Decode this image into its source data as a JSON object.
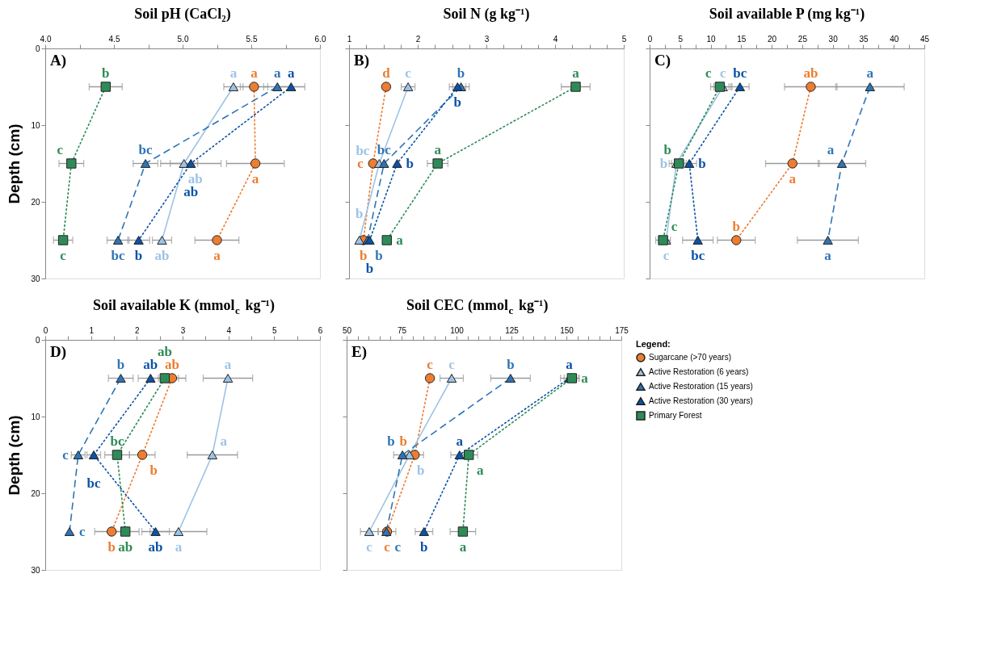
{
  "chart_data": [
    {
      "type": "line",
      "title": "Soil pH (CaCl₂)",
      "ylabel": "Depth (cm)",
      "annotations": [
        "A)"
      ],
      "grid": false,
      "legend": false,
      "xlim": [
        4,
        6
      ],
      "xticks": [
        {
          "value": 4,
          "label": "4.0"
        },
        {
          "value": 4.25,
          "label": null
        },
        {
          "value": 4.5,
          "label": "4.5"
        },
        {
          "value": 4.75,
          "label": null
        },
        {
          "value": 5,
          "label": "5.0"
        },
        {
          "value": 5.25,
          "label": null
        },
        {
          "value": 5.5,
          "label": "5.5"
        },
        {
          "value": 5.75,
          "label": null
        },
        {
          "value": 6,
          "label": "6.0"
        }
      ],
      "ylim": [
        30,
        0
      ],
      "yticks": [
        0,
        10,
        20,
        30
      ],
      "series": [
        {
          "color": "#ed7d31",
          "marker": "circle",
          "line_style": "dotted",
          "x": [
            5.52,
            5.53,
            5.25
          ],
          "values": [
            5,
            15,
            25
          ],
          "xerrors": [
            0.1,
            0.21,
            0.16
          ],
          "value_labels": [
            "a",
            "a",
            "a"
          ]
        },
        {
          "color": "#9dc3e6",
          "marker": "triangle",
          "line_style": "solid",
          "x": [
            5.37,
            5.01,
            4.85
          ],
          "values": [
            5,
            15,
            25
          ],
          "xerrors": [
            0.07,
            0.1,
            0.07
          ],
          "value_labels": [
            "a",
            "ab",
            "ab"
          ]
        },
        {
          "color": "#2e75b6",
          "marker": "triangle",
          "line_style": "dashed",
          "x": [
            5.69,
            4.73,
            4.53
          ],
          "values": [
            5,
            15,
            25
          ],
          "xerrors": [
            0.1,
            0.09,
            0.08
          ],
          "value_labels": [
            "a",
            "bc",
            "bc"
          ]
        },
        {
          "color": "#0b52a8",
          "marker": "triangle",
          "line_style": "dotted",
          "x": [
            5.79,
            5.06,
            4.68
          ],
          "values": [
            5,
            15,
            25
          ],
          "xerrors": [
            0.1,
            0.22,
            0.08
          ],
          "value_labels": [
            "a",
            "ab",
            "b"
          ]
        },
        {
          "color": "#2e8b57",
          "marker": "square",
          "line_style": "dotted",
          "x": [
            4.44,
            4.19,
            4.13
          ],
          "values": [
            5,
            15,
            25
          ],
          "xerrors": [
            0.12,
            0.09,
            0.07
          ],
          "value_labels": [
            "b",
            "c",
            "c"
          ]
        }
      ]
    },
    {
      "type": "line",
      "title": "Soil N (g kg⁻¹)",
      "annotations": [
        "B)"
      ],
      "grid": false,
      "legend": false,
      "tick_labels": "x",
      "xlim": [
        1,
        5
      ],
      "xticks": [
        1,
        {
          "value": 1.25,
          "label": null
        },
        {
          "value": 1.5,
          "label": null
        },
        {
          "value": 1.75,
          "label": null
        },
        2,
        {
          "value": 2.25,
          "label": null
        },
        {
          "value": 2.5,
          "label": null
        },
        {
          "value": 2.75,
          "label": null
        },
        3,
        {
          "value": 3.25,
          "label": null
        },
        {
          "value": 3.5,
          "label": null
        },
        {
          "value": 3.75,
          "label": null
        },
        4,
        {
          "value": 4.25,
          "label": null
        },
        {
          "value": 4.5,
          "label": null
        },
        {
          "value": 4.75,
          "label": null
        },
        5
      ],
      "ylim": [
        30,
        0
      ],
      "yticks": [
        0,
        10,
        20,
        30
      ],
      "series": [
        {
          "color": "#ed7d31",
          "marker": "circle",
          "line_style": "dotted",
          "x": [
            1.54,
            1.35,
            1.21
          ],
          "values": [
            5,
            15,
            25
          ],
          "xerrors": [
            null,
            null,
            null
          ],
          "value_labels": [
            "d",
            "c",
            "b"
          ]
        },
        {
          "color": "#9dc3e6",
          "marker": "triangle",
          "line_style": "solid",
          "x": [
            1.86,
            1.44,
            1.15
          ],
          "values": [
            5,
            15,
            25
          ],
          "xerrors": [
            0.1,
            null,
            null
          ],
          "value_labels": [
            "c",
            "bc",
            "b"
          ]
        },
        {
          "color": "#2e75b6",
          "marker": "triangle",
          "line_style": "dashed",
          "x": [
            2.63,
            1.51,
            1.27
          ],
          "values": [
            5,
            15,
            25
          ],
          "xerrors": [
            0.12,
            null,
            null
          ],
          "value_labels": [
            "b",
            "bc",
            "b"
          ]
        },
        {
          "color": "#0b52a8",
          "marker": "triangle",
          "line_style": "dotted",
          "x": [
            2.58,
            1.7,
            1.3
          ],
          "values": [
            5,
            15,
            25
          ],
          "xerrors": [
            0.12,
            null,
            null
          ],
          "value_labels": [
            "b",
            "b",
            "b"
          ]
        },
        {
          "color": "#2e8b57",
          "marker": "square",
          "line_style": "dotted",
          "x": [
            4.3,
            2.29,
            1.55
          ],
          "values": [
            5,
            15,
            25
          ],
          "xerrors": [
            0.21,
            0.15,
            null
          ],
          "value_labels": [
            "a",
            "a",
            "a"
          ]
        }
      ]
    },
    {
      "type": "line",
      "title": "Soil available P (mg kg⁻¹)",
      "annotations": [
        "C)"
      ],
      "grid": false,
      "legend": false,
      "tick_labels": "x",
      "xlim": [
        0,
        45
      ],
      "xticks": [
        0,
        {
          "value": 2.5,
          "label": null
        },
        5,
        {
          "value": 7.5,
          "label": null
        },
        10,
        {
          "value": 12.5,
          "label": null
        },
        15,
        {
          "value": 17.5,
          "label": null
        },
        20,
        {
          "value": 22.5,
          "label": null
        },
        25,
        {
          "value": 27.5,
          "label": null
        },
        30,
        {
          "value": 32.5,
          "label": null
        },
        35,
        {
          "value": 37.5,
          "label": null
        },
        40,
        {
          "value": 42.5,
          "label": null
        },
        45
      ],
      "ylim": [
        30,
        0
      ],
      "yticks": [
        0,
        10,
        20,
        30
      ],
      "series": [
        {
          "color": "#ed7d31",
          "marker": "circle",
          "line_style": "dotted",
          "x": [
            26.4,
            23.4,
            14.2
          ],
          "values": [
            5,
            15,
            25
          ],
          "xerrors": [
            4.3,
            4.4,
            3.1
          ],
          "value_labels": [
            "ab",
            "a",
            "b"
          ]
        },
        {
          "color": "#9dc3e6",
          "marker": "triangle",
          "line_style": "solid",
          "x": [
            12.0,
            4.4,
            2.7
          ],
          "values": [
            5,
            15,
            25
          ],
          "xerrors": [
            1.5,
            1.2,
            null
          ],
          "value_labels": [
            "c",
            "b",
            "c"
          ]
        },
        {
          "color": "#2e75b6",
          "marker": "triangle",
          "line_style": "dashed",
          "x": [
            36.1,
            31.5,
            29.2
          ],
          "values": [
            5,
            15,
            25
          ],
          "xerrors": [
            5.6,
            3.9,
            5.0
          ],
          "value_labels": [
            "a",
            "a",
            "a"
          ]
        },
        {
          "color": "#0b52a8",
          "marker": "triangle",
          "line_style": "dotted",
          "x": [
            14.8,
            6.5,
            7.9
          ],
          "values": [
            5,
            15,
            25
          ],
          "xerrors": [
            1.5,
            1.2,
            2.5
          ],
          "value_labels": [
            "bc",
            "b",
            "bc"
          ]
        },
        {
          "color": "#2e8b57",
          "marker": "square",
          "line_style": "dotted",
          "x": [
            11.5,
            4.8,
            2.2
          ],
          "values": [
            5,
            15,
            25
          ],
          "xerrors": [
            1.5,
            1.2,
            1.2
          ],
          "value_labels": [
            "c",
            "b",
            "c"
          ]
        }
      ]
    },
    {
      "type": "line",
      "title": "Soil available K (mmol$_{c}$ kg⁻¹)",
      "ylabel": "Depth (cm)",
      "annotations": [
        "D)"
      ],
      "grid": false,
      "legend": false,
      "xlim": [
        0,
        6
      ],
      "xticks": [
        0,
        {
          "value": 0.5,
          "label": null
        },
        1,
        {
          "value": 1.5,
          "label": null
        },
        2,
        {
          "value": 2.5,
          "label": null
        },
        3,
        {
          "value": 3.5,
          "label": null
        },
        4,
        {
          "value": 4.5,
          "label": null
        },
        5,
        {
          "value": 5.5,
          "label": null
        },
        6
      ],
      "ylim": [
        30,
        0
      ],
      "yticks": [
        0,
        10,
        20,
        30
      ],
      "series": [
        {
          "color": "#ed7d31",
          "marker": "circle",
          "line_style": "dotted",
          "x": [
            2.77,
            2.12,
            1.45
          ],
          "values": [
            5,
            15,
            25
          ],
          "xerrors": [
            0.3,
            0.28,
            0.37
          ],
          "value_labels": [
            "ab",
            "b",
            "b"
          ]
        },
        {
          "color": "#9dc3e6",
          "marker": "triangle",
          "line_style": "solid",
          "x": [
            3.99,
            3.65,
            2.91
          ],
          "values": [
            5,
            15,
            25
          ],
          "xerrors": [
            0.54,
            0.55,
            0.62
          ],
          "value_labels": [
            "a",
            "a",
            "a"
          ]
        },
        {
          "color": "#2e75b6",
          "marker": "triangle",
          "line_style": "dashed",
          "x": [
            1.65,
            0.72,
            0.53
          ],
          "values": [
            5,
            15,
            25
          ],
          "xerrors": [
            0.27,
            0.15,
            null
          ],
          "value_labels": [
            "b",
            "c",
            "c"
          ]
        },
        {
          "color": "#0b52a8",
          "marker": "triangle",
          "line_style": "dotted",
          "x": [
            2.3,
            1.06,
            2.41
          ],
          "values": [
            5,
            15,
            25
          ],
          "xerrors": [
            0.27,
            0.15,
            0.3
          ],
          "value_labels": [
            "ab",
            "bc",
            "ab"
          ]
        },
        {
          "color": "#2e8b57",
          "marker": "square",
          "line_style": "dotted",
          "x": [
            2.61,
            1.57,
            1.75
          ],
          "values": [
            5,
            15,
            25
          ],
          "xerrors": [
            0.3,
            0.27,
            0.3
          ],
          "value_labels": [
            "ab",
            "bc",
            "ab"
          ]
        }
      ]
    },
    {
      "type": "line",
      "title": "Soil CEC (mmol$_{c}$ kg⁻¹)",
      "annotations": [
        "E)"
      ],
      "grid": false,
      "legend": "right",
      "legend_title": "Legend:",
      "tick_labels": "x",
      "xlim": [
        50,
        175
      ],
      "xticks": [
        50,
        {
          "value": 55,
          "label": null
        },
        {
          "value": 60,
          "label": null
        },
        {
          "value": 65,
          "label": null
        },
        {
          "value": 70,
          "label": null
        },
        75,
        {
          "value": 80,
          "label": null
        },
        {
          "value": 85,
          "label": null
        },
        {
          "value": 90,
          "label": null
        },
        {
          "value": 95,
          "label": null
        },
        100,
        {
          "value": 105,
          "label": null
        },
        {
          "value": 110,
          "label": null
        },
        {
          "value": 115,
          "label": null
        },
        {
          "value": 120,
          "label": null
        },
        125,
        {
          "value": 130,
          "label": null
        },
        {
          "value": 135,
          "label": null
        },
        {
          "value": 140,
          "label": null
        },
        {
          "value": 145,
          "label": null
        },
        150,
        {
          "value": 155,
          "label": null
        },
        {
          "value": 160,
          "label": null
        },
        {
          "value": 165,
          "label": null
        },
        {
          "value": 170,
          "label": null
        },
        175
      ],
      "ylim": [
        30,
        0
      ],
      "yticks": [
        0,
        10,
        20,
        30
      ],
      "series": [
        {
          "name": "Sugarcane (>70 years)",
          "color": "#ed7d31",
          "marker": "circle",
          "line_style": "dotted",
          "x": [
            87.9,
            81.0,
            68.4
          ],
          "values": [
            5,
            15,
            25
          ],
          "xerrors": [
            null,
            4,
            4
          ],
          "value_labels": [
            "c",
            "b",
            "c"
          ]
        },
        {
          "name": "Active Restoration (6 years)",
          "color": "#9dc3e6",
          "marker": "triangle",
          "line_style": "solid",
          "x": [
            97.8,
            78.6,
            60.3
          ],
          "values": [
            5,
            15,
            25
          ],
          "xerrors": [
            5.3,
            null,
            4
          ],
          "value_labels": [
            "c",
            "b",
            "c"
          ]
        },
        {
          "name": "Active Restoration (15 years)",
          "color": "#2e75b6",
          "marker": "triangle",
          "line_style": "dashed",
          "x": [
            124.6,
            75.4,
            68.1
          ],
          "values": [
            5,
            15,
            25
          ],
          "xerrors": [
            9.0,
            4,
            null
          ],
          "value_labels": [
            "b",
            "b",
            "c"
          ]
        },
        {
          "name": "Active Restoration (30 years)",
          "color": "#0b52a8",
          "marker": "triangle",
          "line_style": "dotted",
          "x": [
            151.3,
            101.4,
            85.2
          ],
          "values": [
            5,
            15,
            25
          ],
          "xerrors": [
            4,
            4,
            4.0
          ],
          "value_labels": [
            "a",
            "a",
            "b"
          ]
        },
        {
          "name": "Primary Forest",
          "color": "#2e8b57",
          "marker": "square",
          "line_style": "dotted",
          "x": [
            152.5,
            105.6,
            102.9
          ],
          "values": [
            5,
            15,
            25
          ],
          "xerrors": [
            3.5,
            4,
            5.8
          ],
          "value_labels": [
            "a",
            "a",
            "a"
          ]
        }
      ]
    }
  ]
}
